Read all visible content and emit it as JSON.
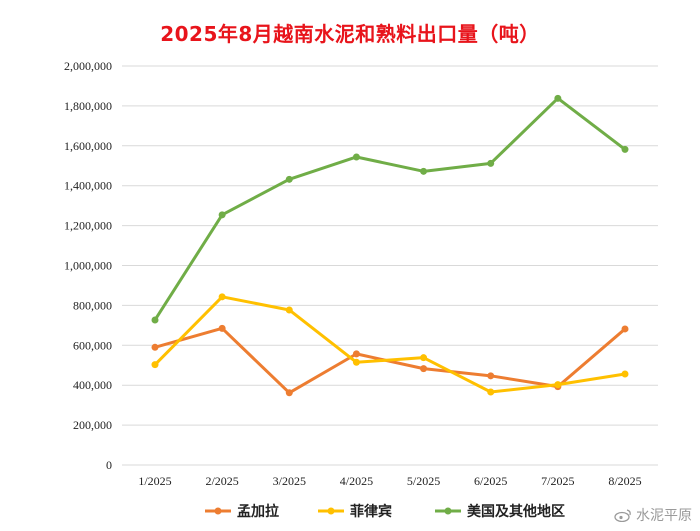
{
  "title": "2025年8月越南水泥和熟料出口量（吨）",
  "watermark": {
    "text": "水泥平原",
    "icon": "weibo-icon"
  },
  "chart_data": {
    "type": "line",
    "title": "2025年8月越南水泥和熟料出口量（吨）",
    "categories": [
      "1/2025",
      "2/2025",
      "3/2025",
      "4/2025",
      "5/2025",
      "6/2025",
      "7/2025",
      "8/2025"
    ],
    "ylim": [
      0,
      2000000
    ],
    "yticks": [
      0,
      200000,
      400000,
      600000,
      800000,
      1000000,
      1200000,
      1400000,
      1600000,
      1800000,
      2000000
    ],
    "ytick_labels": [
      "0",
      "200,000",
      "400,000",
      "600,000",
      "800,000",
      "1,000,000",
      "1,200,000",
      "1,400,000",
      "1,600,000",
      "1,800,000",
      "2,000,000"
    ],
    "grid": true,
    "legend_position": "bottom",
    "series": [
      {
        "name": "孟加拉",
        "color": "#ed7d31",
        "values": [
          590000,
          685000,
          362000,
          557000,
          483000,
          447000,
          393000,
          682000
        ]
      },
      {
        "name": "菲律宾",
        "color": "#ffc000",
        "values": [
          503000,
          843000,
          777000,
          515000,
          538000,
          366000,
          403000,
          456000
        ]
      },
      {
        "name": "美国及其他地区",
        "color": "#70ad47",
        "values": [
          727000,
          1254000,
          1432000,
          1544000,
          1472000,
          1512000,
          1838000,
          1582000
        ]
      }
    ]
  }
}
